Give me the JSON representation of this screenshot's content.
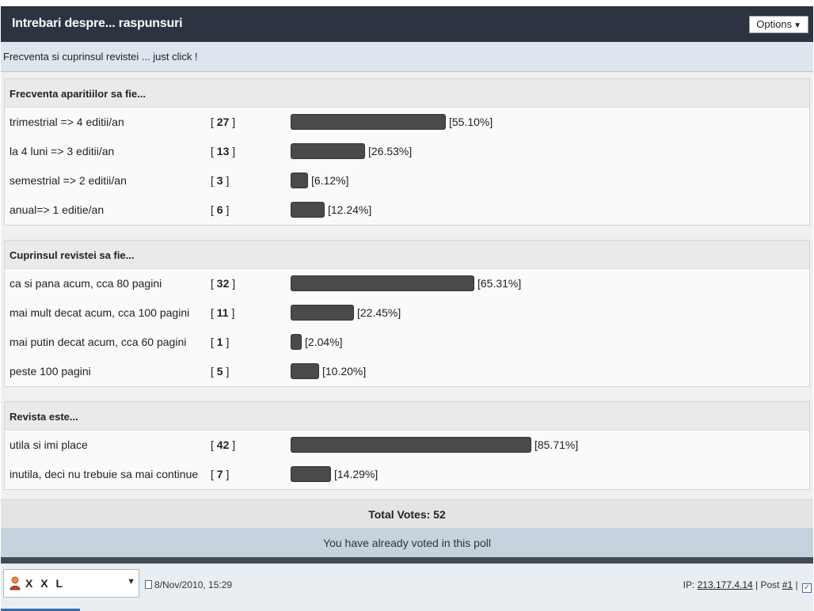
{
  "header": {
    "title": "Intrebari despre... raspunsuri",
    "options_label": "Options"
  },
  "subheader": {
    "text": "Frecventa si cuprinsul revistei ... just click !"
  },
  "sections": [
    {
      "title": "Frecventa aparitiilor sa fie...",
      "options": [
        {
          "label": "trimestrial => 4 editii/an",
          "votes": "27",
          "percent_text": "[55.10%]",
          "percent": 55.1
        },
        {
          "label": "la 4 luni => 3 editii/an",
          "votes": "13",
          "percent_text": "[26.53%]",
          "percent": 26.53
        },
        {
          "label": "semestrial => 2 editii/an",
          "votes": "3",
          "percent_text": "[6.12%]",
          "percent": 6.12
        },
        {
          "label": "anual=> 1 editie/an",
          "votes": "6",
          "percent_text": "[12.24%]",
          "percent": 12.24
        }
      ]
    },
    {
      "title": "Cuprinsul revistei sa fie...",
      "options": [
        {
          "label": "ca si pana acum, cca 80 pagini",
          "votes": "32",
          "percent_text": "[65.31%]",
          "percent": 65.31
        },
        {
          "label": "mai mult decat acum, cca 100 pagini",
          "votes": "11",
          "percent_text": "[22.45%]",
          "percent": 22.45
        },
        {
          "label": "mai putin decat acum, cca 60 pagini",
          "votes": "1",
          "percent_text": "[2.04%]",
          "percent": 2.04
        },
        {
          "label": "peste 100 pagini",
          "votes": "5",
          "percent_text": "[10.20%]",
          "percent": 10.2
        }
      ]
    },
    {
      "title": "Revista este...",
      "options": [
        {
          "label": "utila si imi place",
          "votes": "42",
          "percent_text": "[85.71%]",
          "percent": 85.71
        },
        {
          "label": "inutila, deci nu trebuie sa mai continue",
          "votes": "7",
          "percent_text": "[14.29%]",
          "percent": 14.29
        }
      ]
    }
  ],
  "total_votes": "Total Votes: 52",
  "voted_message": "You have already voted in this poll",
  "footer": {
    "user_name": "X X L",
    "date": "8/Nov/2010, 15:29",
    "ip_prefix": "IP: ",
    "ip": "213.177.4.14",
    "post_prefix": " | Post ",
    "post_number": "#1",
    "separator": " |"
  },
  "icons": {
    "options_caret": "triangle-down",
    "user": "user-icon",
    "date": "document-icon",
    "select_caret": "triangle-down",
    "checkbox": "checkbox-icon"
  },
  "colors": {
    "header_bg": "#2b3440",
    "subheader_bg": "#dde5ef",
    "bar_fill": "#4a4a4a",
    "voted_bg": "#c6d2de"
  }
}
